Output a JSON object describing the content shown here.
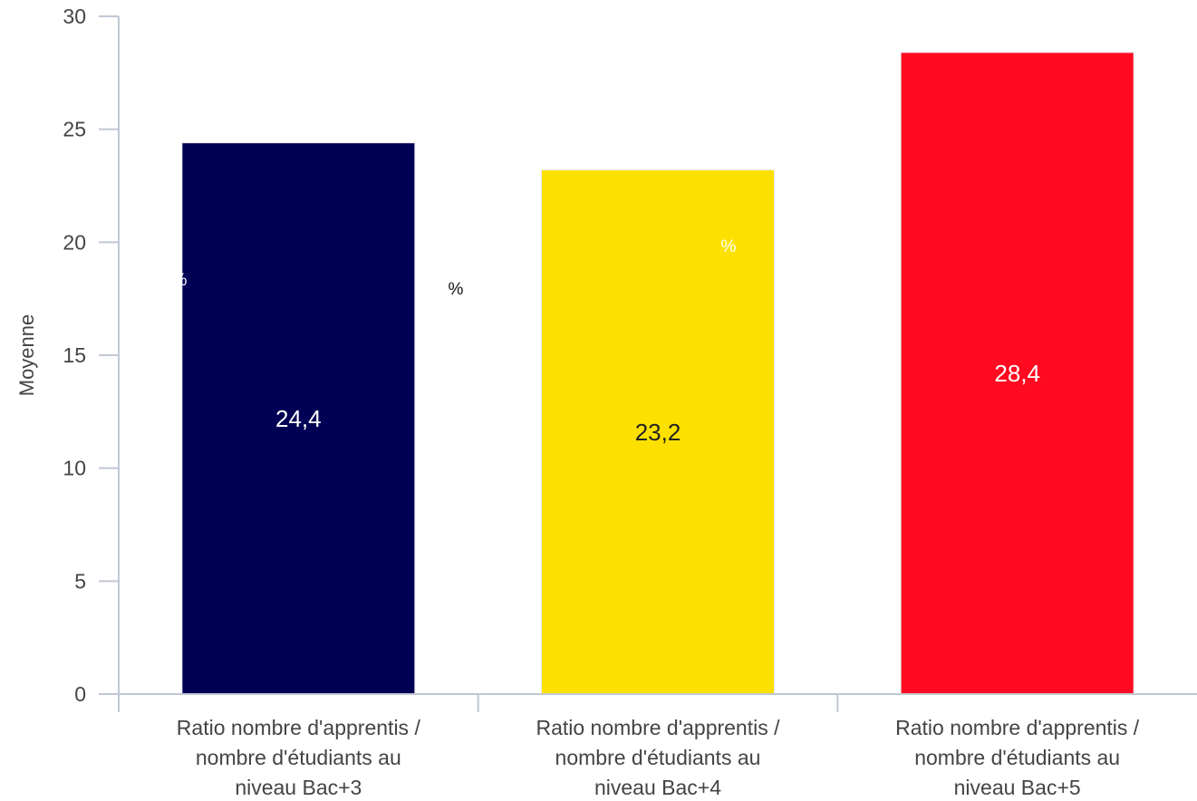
{
  "chart_data": {
    "type": "bar",
    "ylabel": "Moyenne",
    "ylim": [
      0,
      30
    ],
    "yticks": [
      "0",
      "5",
      "10",
      "15",
      "20",
      "25",
      "30"
    ],
    "grid": false,
    "categories": [
      [
        "Ratio nombre d'apprentis /",
        "nombre d'étudiants au",
        "niveau Bac+3"
      ],
      [
        "Ratio nombre d'apprentis /",
        "nombre d'étudiants au",
        "niveau Bac+4"
      ],
      [
        "Ratio nombre d'apprentis /",
        "nombre d'étudiants au",
        "niveau Bac+5"
      ]
    ],
    "values": [
      24.4,
      23.2,
      28.4
    ],
    "value_labels": [
      "24,4",
      "23,2",
      "28,4"
    ],
    "colors": [
      "#000055",
      "#FCE100",
      "#FF0A20"
    ],
    "label_colors": [
      "#ffffff",
      "#222222",
      "#ffffff"
    ],
    "annotations": [
      "%",
      "%",
      "%"
    ]
  }
}
